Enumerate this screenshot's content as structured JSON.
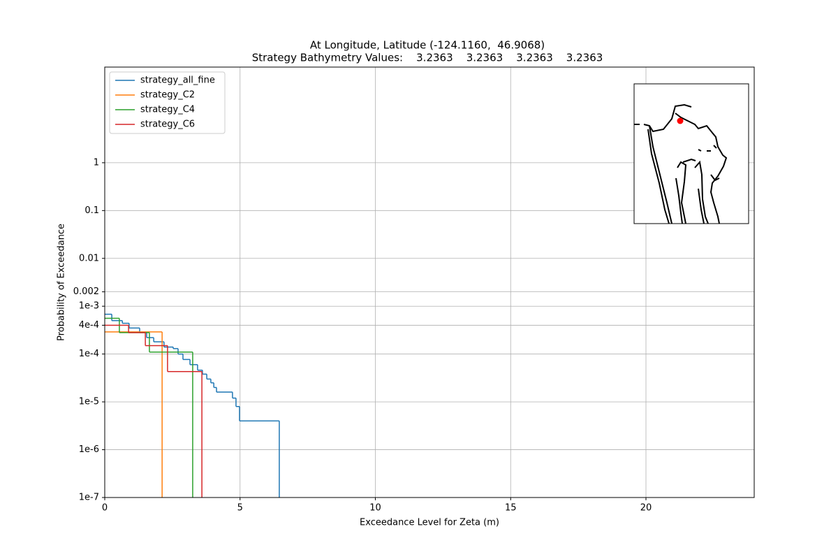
{
  "chart_data": {
    "type": "step",
    "title": "At Longitude, Latitude (-124.1160,  46.9068)",
    "subtitle": "Strategy Bathymetry Values:    3.2363    3.2363    3.2363    3.2363",
    "x_label": "Exceedance Level for Zeta (m)",
    "y_label": "Probability of Exceedance",
    "xlim": [
      0,
      24
    ],
    "xticks": [
      0,
      5,
      10,
      15,
      20
    ],
    "ylim": [
      1e-07,
      100
    ],
    "y_scale": "log",
    "yticks": [
      {
        "value": 1e-07,
        "label": "1e-7"
      },
      {
        "value": 1e-06,
        "label": "1e-6"
      },
      {
        "value": 1e-05,
        "label": "1e-5"
      },
      {
        "value": 0.0001,
        "label": "1e-4"
      },
      {
        "value": 0.0004,
        "label": "4e-4"
      },
      {
        "value": 0.001,
        "label": "1e-3"
      },
      0.002,
      0.01,
      0.1,
      1
    ],
    "grid": true,
    "legend": "upper left",
    "series": [
      {
        "name": "strategy_all_fine",
        "color": "#1f77b4",
        "x": [
          0,
          0.26,
          0.65,
          0.9,
          1.29,
          1.55,
          1.81,
          2.19,
          2.53,
          2.71,
          2.89,
          3.15,
          3.43,
          3.61,
          3.77,
          3.92,
          4.03,
          4.13,
          4.72,
          4.85,
          4.98,
          6.45
        ],
        "values": [
          0.00068,
          0.0005,
          0.00044,
          0.00035,
          0.00028,
          0.00022,
          0.00018,
          0.00014,
          0.00013,
          0.0001,
          7.7e-05,
          6e-05,
          4.6e-05,
          3.8e-05,
          3e-05,
          2.5e-05,
          2e-05,
          1.6e-05,
          1.2e-05,
          8e-06,
          4e-06,
          1e-07
        ]
      },
      {
        "name": "strategy_C2",
        "color": "#ff7f0e",
        "x": [
          0,
          2.12
        ],
        "values": [
          0.00029,
          1e-07
        ]
      },
      {
        "name": "strategy_C4",
        "color": "#2ca02c",
        "x": [
          0,
          0.54,
          1.65,
          3.25
        ],
        "values": [
          0.00056,
          0.00028,
          0.00011,
          1e-07
        ]
      },
      {
        "name": "strategy_C6",
        "color": "#d62728",
        "x": [
          0,
          0.88,
          1.5,
          2.32,
          3.59
        ],
        "values": [
          0.0004,
          0.00028,
          0.00015,
          4.3e-05,
          1e-07
        ]
      }
    ]
  }
}
